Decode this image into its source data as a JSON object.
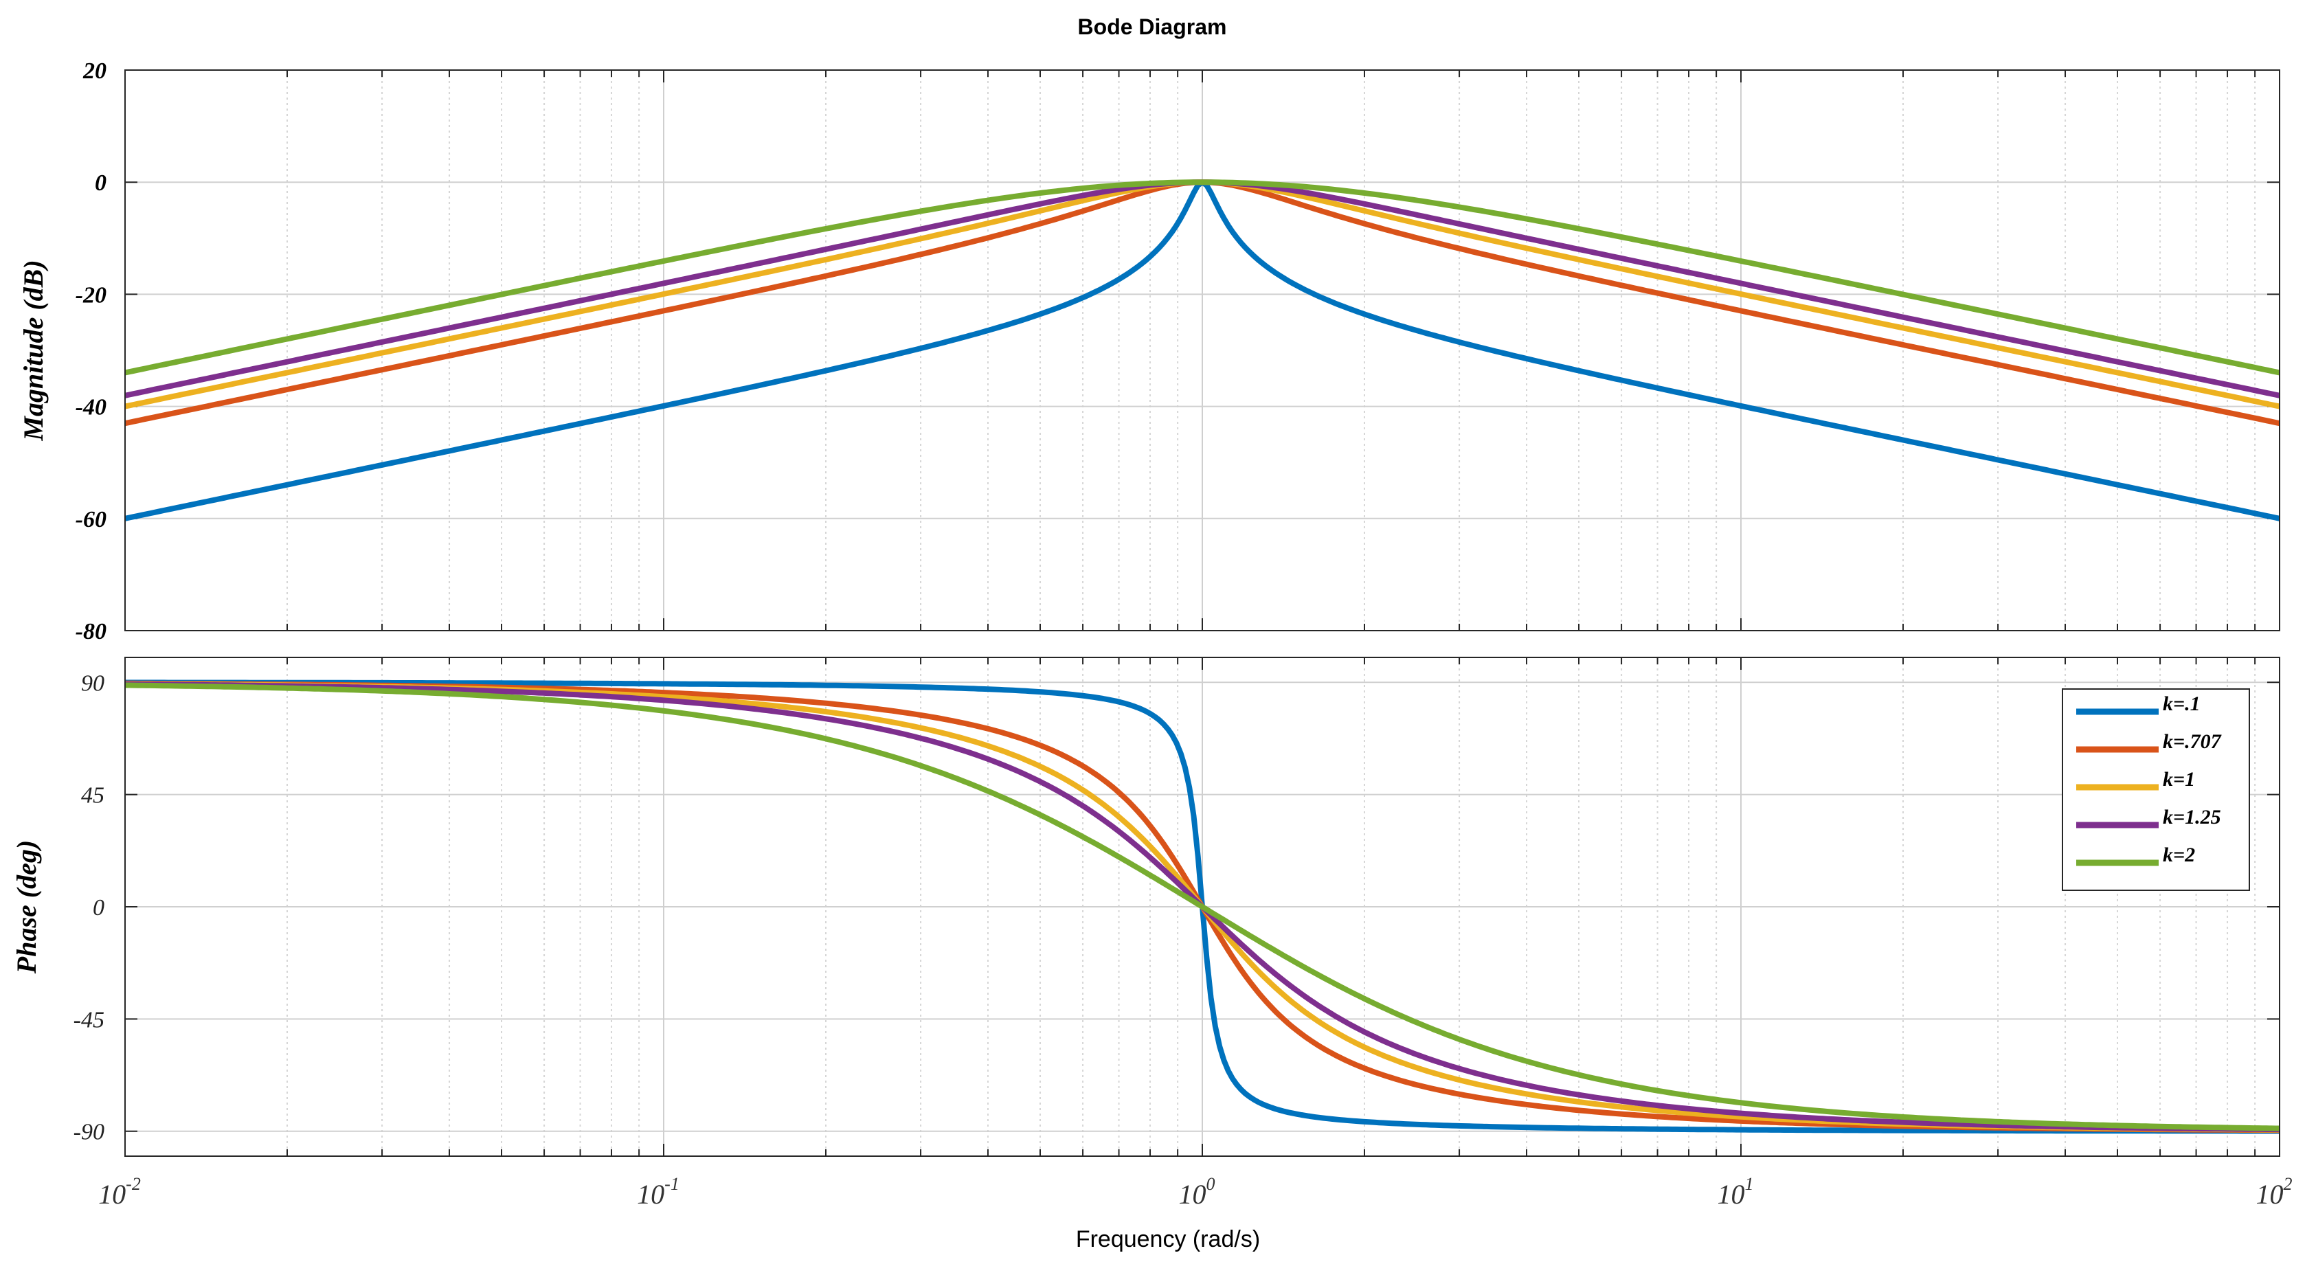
{
  "chart_data": {
    "type": "line",
    "title": "Bode Diagram",
    "xlabel": "Frequency  (rad/s)",
    "xscale": "log",
    "xlim": [
      0.01,
      100
    ],
    "xticks": [
      {
        "base": "10",
        "exp": "-2"
      },
      {
        "base": "10",
        "exp": "-1"
      },
      {
        "base": "10",
        "exp": "0"
      },
      {
        "base": "10",
        "exp": "1"
      },
      {
        "base": "10",
        "exp": "2"
      }
    ],
    "grid": true,
    "legend_position": "top-right of phase panel",
    "magnitude": {
      "ylabel": "Magnitude (dB)",
      "ylim": [
        -80,
        20
      ],
      "yticks": [
        "20",
        "0",
        "-20",
        "-40",
        "-60",
        "-80"
      ]
    },
    "phase": {
      "ylabel": "Phase (deg)",
      "ylim": [
        -100,
        100
      ],
      "yticks": [
        "90",
        "45",
        "0",
        "-45",
        "-90"
      ]
    },
    "transfer_function": "H(s) = k*s / (s^2 + k*s + 1)",
    "series": [
      {
        "name": "k=.1",
        "k": 0.1,
        "color": "#0072BD"
      },
      {
        "name": "k=.707",
        "k": 0.707,
        "color": "#D95319"
      },
      {
        "name": "k=1",
        "k": 1,
        "color": "#EDB120"
      },
      {
        "name": "k=1.25",
        "k": 1.25,
        "color": "#7E2F8E"
      },
      {
        "name": "k=2",
        "k": 2,
        "color": "#77AC30"
      }
    ]
  }
}
